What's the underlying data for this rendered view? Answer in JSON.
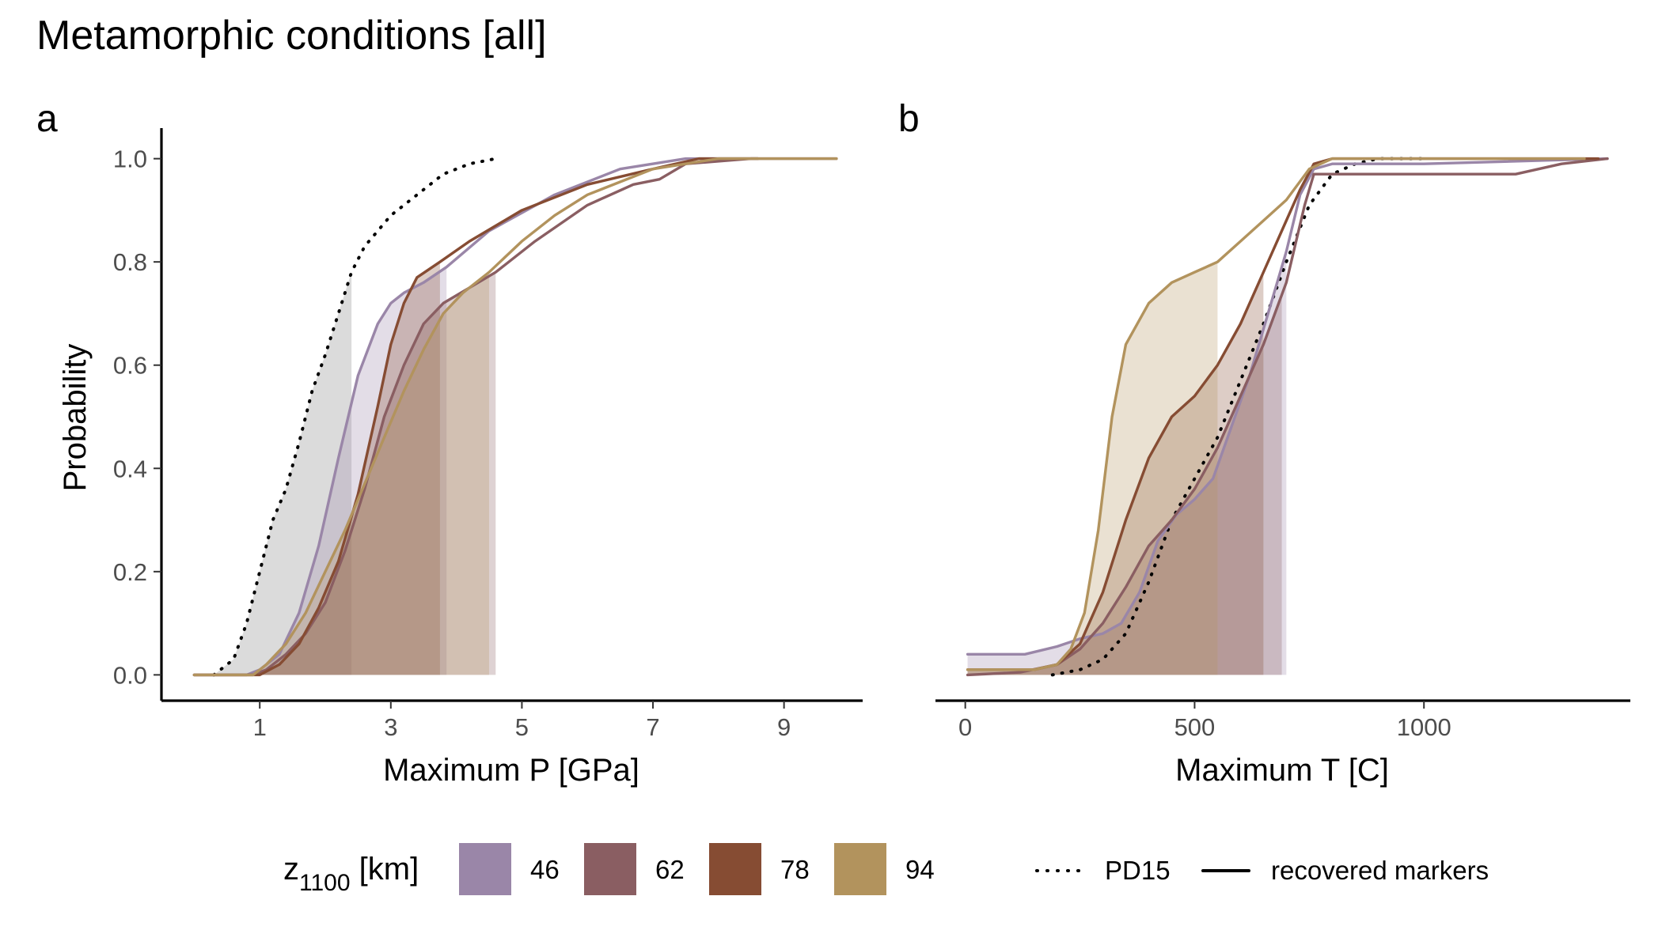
{
  "title": "Metamorphic conditions [all]",
  "legend": {
    "title_main": "z",
    "title_sub": "1100",
    "title_unit": " [km]",
    "items": [
      {
        "label": "46",
        "color": "#9a86a8"
      },
      {
        "label": "62",
        "color": "#8a5e62"
      },
      {
        "label": "78",
        "color": "#864c33"
      },
      {
        "label": "94",
        "color": "#b2935d"
      }
    ],
    "line_items": [
      {
        "label": "PD15",
        "style": "dotted"
      },
      {
        "label": "recovered markers",
        "style": "solid"
      }
    ]
  },
  "chart_data": [
    {
      "type": "line",
      "panel": "a",
      "xlabel": "Maximum P [GPa]",
      "ylabel": "Probability",
      "xlim": [
        -0.5,
        10.2
      ],
      "ylim": [
        -0.05,
        1.05
      ],
      "xticks": [
        1,
        3,
        5,
        7,
        9
      ],
      "yticks": [
        0.0,
        0.2,
        0.4,
        0.6,
        0.8,
        1.0
      ],
      "ytick_labels": [
        "0.0",
        "0.2",
        "0.4",
        "0.6",
        "0.8",
        "1.0"
      ],
      "series": [
        {
          "name": "PD15",
          "style": "dotted",
          "color": "#000000",
          "shade_to": 2.4,
          "shade_color": "#bdbdbd",
          "x": [
            0.3,
            0.6,
            0.8,
            1.0,
            1.2,
            1.4,
            1.6,
            1.8,
            2.0,
            2.2,
            2.4,
            2.6,
            2.8,
            3.0,
            3.2,
            3.5,
            3.8,
            4.2,
            4.6
          ],
          "y": [
            0.0,
            0.03,
            0.1,
            0.2,
            0.3,
            0.36,
            0.45,
            0.55,
            0.62,
            0.7,
            0.78,
            0.83,
            0.86,
            0.89,
            0.91,
            0.94,
            0.97,
            0.99,
            1.0
          ]
        },
        {
          "name": "46",
          "style": "solid",
          "color": "#9a86a8",
          "shade_to": 3.85,
          "x": [
            0.0,
            0.8,
            1.0,
            1.3,
            1.6,
            1.9,
            2.2,
            2.5,
            2.8,
            3.0,
            3.2,
            3.5,
            3.85,
            4.5,
            5.5,
            6.5,
            7.5,
            8.6
          ],
          "y": [
            0.0,
            0.0,
            0.01,
            0.04,
            0.12,
            0.25,
            0.42,
            0.58,
            0.68,
            0.72,
            0.74,
            0.76,
            0.79,
            0.86,
            0.93,
            0.98,
            1.0,
            1.0
          ]
        },
        {
          "name": "62",
          "style": "solid",
          "color": "#8a5e62",
          "shade_to": 4.6,
          "x": [
            0.0,
            0.9,
            1.1,
            1.4,
            1.7,
            2.0,
            2.3,
            2.6,
            2.9,
            3.2,
            3.5,
            3.8,
            4.2,
            4.6,
            5.2,
            6.0,
            6.7,
            7.1,
            7.5,
            8.5,
            9.8
          ],
          "y": [
            0.0,
            0.0,
            0.01,
            0.04,
            0.08,
            0.14,
            0.24,
            0.36,
            0.5,
            0.6,
            0.68,
            0.72,
            0.75,
            0.78,
            0.84,
            0.91,
            0.95,
            0.96,
            0.99,
            1.0,
            1.0
          ]
        },
        {
          "name": "78",
          "style": "solid",
          "color": "#864c33",
          "shade_to": 3.75,
          "x": [
            0.0,
            1.0,
            1.3,
            1.6,
            1.9,
            2.2,
            2.5,
            2.8,
            3.0,
            3.2,
            3.4,
            3.75,
            4.2,
            5.0,
            6.0,
            7.0,
            7.7,
            8.6
          ],
          "y": [
            0.0,
            0.0,
            0.02,
            0.06,
            0.13,
            0.22,
            0.35,
            0.52,
            0.64,
            0.72,
            0.77,
            0.8,
            0.84,
            0.9,
            0.95,
            0.98,
            1.0,
            1.0
          ]
        },
        {
          "name": "94",
          "style": "solid",
          "color": "#b2935d",
          "shade_to": 4.5,
          "x": [
            0.0,
            0.9,
            1.1,
            1.4,
            1.7,
            2.0,
            2.3,
            2.6,
            2.9,
            3.2,
            3.5,
            3.8,
            4.1,
            4.5,
            5.0,
            5.5,
            6.0,
            7.0,
            8.0,
            9.0,
            9.8
          ],
          "y": [
            0.0,
            0.0,
            0.02,
            0.06,
            0.12,
            0.2,
            0.28,
            0.37,
            0.46,
            0.55,
            0.63,
            0.7,
            0.74,
            0.78,
            0.84,
            0.89,
            0.93,
            0.98,
            1.0,
            1.0,
            1.0
          ]
        }
      ]
    },
    {
      "type": "line",
      "panel": "b",
      "xlabel": "Maximum T [C]",
      "ylabel": "",
      "xlim": [
        -65,
        1450
      ],
      "ylim": [
        -0.05,
        1.05
      ],
      "xticks": [
        0,
        500,
        1000
      ],
      "series": [
        {
          "name": "PD15",
          "style": "dotted",
          "color": "#000000",
          "x": [
            190,
            250,
            300,
            350,
            400,
            450,
            500,
            550,
            600,
            650,
            700,
            750,
            800,
            850,
            900,
            1000
          ],
          "y": [
            0.0,
            0.01,
            0.03,
            0.08,
            0.18,
            0.3,
            0.38,
            0.46,
            0.57,
            0.68,
            0.8,
            0.91,
            0.97,
            0.99,
            1.0,
            1.0
          ]
        },
        {
          "name": "46",
          "style": "solid",
          "color": "#9a86a8",
          "shade_to": 700,
          "x": [
            5,
            130,
            200,
            250,
            300,
            340,
            380,
            420,
            460,
            500,
            540,
            580,
            620,
            660,
            700,
            730,
            760,
            800,
            1000,
            1400
          ],
          "y": [
            0.04,
            0.04,
            0.055,
            0.07,
            0.08,
            0.1,
            0.16,
            0.26,
            0.31,
            0.34,
            0.38,
            0.48,
            0.58,
            0.7,
            0.82,
            0.93,
            0.98,
            0.99,
            0.99,
            1.0
          ]
        },
        {
          "name": "62",
          "style": "solid",
          "color": "#8a5e62",
          "shade_to": 690,
          "x": [
            5,
            120,
            200,
            250,
            300,
            350,
            400,
            450,
            500,
            550,
            600,
            650,
            700,
            740,
            760,
            1000,
            1200,
            1300,
            1400
          ],
          "y": [
            0.0,
            0.005,
            0.02,
            0.05,
            0.1,
            0.17,
            0.25,
            0.3,
            0.36,
            0.44,
            0.54,
            0.64,
            0.76,
            0.91,
            0.97,
            0.97,
            0.97,
            0.99,
            1.0
          ]
        },
        {
          "name": "78",
          "style": "solid",
          "color": "#864c33",
          "shade_to": 650,
          "x": [
            5,
            150,
            200,
            250,
            300,
            350,
            400,
            450,
            500,
            550,
            600,
            650,
            700,
            730,
            760,
            800,
            1000,
            1300,
            1380
          ],
          "y": [
            0.01,
            0.01,
            0.02,
            0.06,
            0.16,
            0.3,
            0.42,
            0.5,
            0.54,
            0.6,
            0.68,
            0.78,
            0.88,
            0.94,
            0.99,
            1.0,
            1.0,
            1.0,
            1.0
          ]
        },
        {
          "name": "94",
          "style": "solid",
          "color": "#b2935d",
          "shade_to": 550,
          "x": [
            5,
            150,
            200,
            230,
            260,
            290,
            320,
            350,
            400,
            450,
            500,
            550,
            600,
            650,
            700,
            750,
            800,
            1000,
            1350
          ],
          "y": [
            0.01,
            0.01,
            0.02,
            0.05,
            0.12,
            0.28,
            0.5,
            0.64,
            0.72,
            0.76,
            0.78,
            0.8,
            0.84,
            0.88,
            0.92,
            0.98,
            1.0,
            1.0,
            1.0
          ]
        }
      ]
    }
  ],
  "panels": [
    {
      "tag": "a"
    },
    {
      "tag": "b"
    }
  ]
}
